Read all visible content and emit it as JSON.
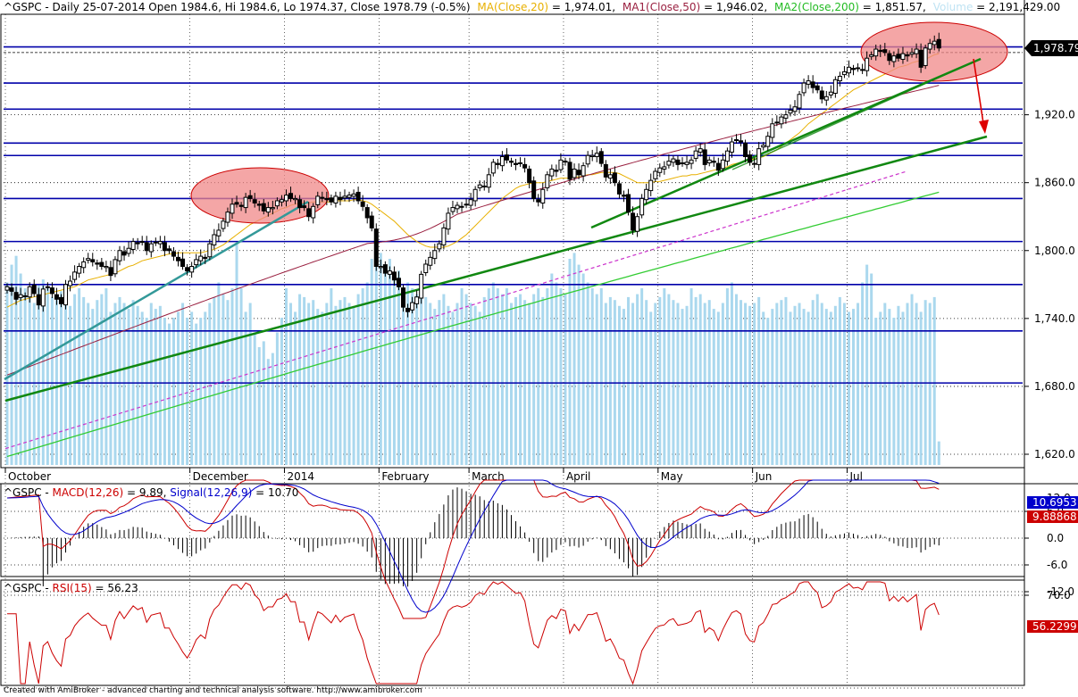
{
  "header": {
    "main_prefix": "^GSPC - Daily 25-07-2014 Open 1984.6, Hi 1984.6, Lo 1974.37, Close 1978.79 (-0.5%)",
    "ma_label": "MA(Close,20)",
    "ma_value": " = 1,974.01,",
    "ma1_label": "MA1(Close,50)",
    "ma1_value": " = 1,946.02,",
    "ma2_label": "MA2(Close,200)",
    "ma2_value": " = 1,851.57,",
    "vol_label": "Volume",
    "vol_value": " = 2,191,429.00",
    "macd_prefix": "^GSPC - ",
    "macd_label": "MACD(12,26)",
    "macd_value": " = 9.89, ",
    "signal_label": "Signal(12,26,9)",
    "signal_value": " = 10.70",
    "rsi_prefix": "^GSPC - ",
    "rsi_label": "RSI(15)",
    "rsi_value": " = 56.23"
  },
  "colors": {
    "candle": "#000000",
    "ma20": "#e8b000",
    "ma50": "#9a2040",
    "ma200": "#33cc33",
    "volume": "#aad8ee",
    "hline": "#0000aa",
    "trend": "#118811",
    "trend_teal": "#339999",
    "dash": "#cc33cc",
    "ellipse_fill": "#f08888",
    "ellipse_stroke": "#cc0000",
    "arrow": "#dd0000",
    "macd": "#cc0000",
    "signal": "#0000cc",
    "rsi": "#cc0000",
    "price_tag": "#000000",
    "macd_tag": "#0000cc",
    "macd_tag2": "#cc0000",
    "rsi_tag": "#cc0000"
  },
  "price_tag": "1,978.79",
  "macd_tags": [
    "10.6953",
    "9.88868"
  ],
  "rsi_tag": "56.2299",
  "footer": "Created with AmiBroker - advanced charting and technical analysis software. http://www.amibroker.com",
  "chart_data": [
    {
      "type": "candlestick",
      "series_name": "^GSPC",
      "ylim": [
        1600,
        2000
      ],
      "y_ticks": [
        1620,
        1680,
        1740,
        1800,
        1860,
        1920,
        1978.79
      ],
      "y_tick_labels": [
        "1,620.0",
        "1,680.0",
        "1,740.0",
        "1,800.0",
        "1,860.0",
        "1,920.0",
        "1,978.79"
      ],
      "x_labels": [
        {
          "label": "October",
          "index": 0
        },
        {
          "label": "December",
          "index": 41
        },
        {
          "label": "2014",
          "index": 62
        },
        {
          "label": "February",
          "index": 83
        },
        {
          "label": "March",
          "index": 103
        },
        {
          "label": "April",
          "index": 124
        },
        {
          "label": "May",
          "index": 145
        },
        {
          "label": "Jun",
          "index": 166
        },
        {
          "label": "Jul",
          "index": 187
        }
      ],
      "horizontal_lines": [
        1980,
        1948,
        1925,
        1895,
        1884,
        1846,
        1808,
        1770,
        1729,
        1683
      ],
      "close": [
        1768,
        1764,
        1757,
        1761,
        1760,
        1768,
        1762,
        1752,
        1766,
        1768,
        1762,
        1757,
        1753,
        1770,
        1773,
        1781,
        1786,
        1790,
        1793,
        1790,
        1788,
        1786,
        1786,
        1778,
        1792,
        1800,
        1796,
        1802,
        1808,
        1806,
        1808,
        1800,
        1806,
        1807,
        1808,
        1800,
        1800,
        1795,
        1791,
        1786,
        1782,
        1786,
        1792,
        1795,
        1793,
        1806,
        1814,
        1818,
        1826,
        1834,
        1841,
        1841,
        1839,
        1847,
        1846,
        1842,
        1840,
        1835,
        1838,
        1838,
        1844,
        1845,
        1849,
        1846,
        1846,
        1838,
        1838,
        1830,
        1839,
        1848,
        1847,
        1845,
        1843,
        1848,
        1845,
        1848,
        1849,
        1850,
        1844,
        1839,
        1829,
        1820,
        1786,
        1786,
        1780,
        1782,
        1774,
        1768,
        1750,
        1746,
        1754,
        1759,
        1779,
        1788,
        1794,
        1800,
        1806,
        1820,
        1833,
        1838,
        1840,
        1839,
        1841,
        1845,
        1854,
        1858,
        1857,
        1867,
        1878,
        1876,
        1883,
        1880,
        1878,
        1876,
        1877,
        1873,
        1860,
        1846,
        1843,
        1854,
        1867,
        1872,
        1870,
        1880,
        1879,
        1863,
        1872,
        1867,
        1875,
        1884,
        1884,
        1886,
        1877,
        1865,
        1867,
        1860,
        1850,
        1848,
        1834,
        1818,
        1830,
        1846,
        1854,
        1862,
        1870,
        1873,
        1874,
        1879,
        1881,
        1876,
        1877,
        1878,
        1880,
        1888,
        1890,
        1876,
        1880,
        1878,
        1871,
        1880,
        1888,
        1896,
        1898,
        1896,
        1883,
        1878,
        1877,
        1890,
        1893,
        1901,
        1912,
        1913,
        1918,
        1920,
        1924,
        1927,
        1938,
        1948,
        1950,
        1944,
        1942,
        1934,
        1936,
        1940,
        1951,
        1954,
        1958,
        1962,
        1960,
        1961,
        1960,
        1970,
        1973,
        1978,
        1976,
        1975,
        1968,
        1972,
        1970,
        1974,
        1972,
        1975,
        1978,
        1962,
        1979,
        1983,
        1985,
        1979
      ],
      "ma20": [
        1750,
        1752,
        1754,
        1756,
        1757,
        1758,
        1759,
        1760,
        1761,
        1762,
        1763,
        1764,
        1765,
        1766,
        1767,
        1768,
        1770,
        1772,
        1774,
        1775,
        1776,
        1777,
        1778,
        1779,
        1780,
        1782,
        1784,
        1786,
        1787,
        1789,
        1791,
        1792,
        1793,
        1794,
        1795,
        1796,
        1797,
        1797,
        1798,
        1798,
        1798,
        1798,
        1798,
        1798,
        1799,
        1800,
        1801,
        1803,
        1805,
        1808,
        1811,
        1814,
        1817,
        1820,
        1823,
        1825,
        1827,
        1829,
        1831,
        1833,
        1835,
        1837,
        1838,
        1840,
        1841,
        1842,
        1842,
        1842,
        1843,
        1843,
        1843,
        1843,
        1843,
        1844,
        1844,
        1844,
        1844,
        1845,
        1845,
        1844,
        1843,
        1841,
        1838,
        1835,
        1832,
        1829,
        1826,
        1822,
        1818,
        1814,
        1811,
        1808,
        1806,
        1804,
        1803,
        1803,
        1803,
        1803,
        1804,
        1806,
        1808,
        1811,
        1814,
        1818,
        1822,
        1826,
        1830,
        1834,
        1838,
        1842,
        1846,
        1849,
        1852,
        1855,
        1857,
        1858,
        1859,
        1860,
        1860,
        1860,
        1861,
        1862,
        1863,
        1864,
        1864,
        1864,
        1865,
        1865,
        1866,
        1867,
        1867,
        1868,
        1869,
        1869,
        1869,
        1869,
        1868,
        1866,
        1864,
        1862,
        1860,
        1860,
        1860,
        1860,
        1861,
        1861,
        1862,
        1863,
        1864,
        1865,
        1866,
        1866,
        1867,
        1867,
        1868,
        1869,
        1870,
        1871,
        1872,
        1873,
        1874,
        1876,
        1877,
        1878,
        1879,
        1880,
        1881,
        1882,
        1883,
        1885,
        1887,
        1889,
        1892,
        1895,
        1898,
        1901,
        1904,
        1908,
        1912,
        1915,
        1918,
        1921,
        1924,
        1927,
        1930,
        1933,
        1936,
        1939,
        1942,
        1944,
        1946,
        1948,
        1950,
        1952,
        1954,
        1956,
        1958,
        1960,
        1962,
        1963,
        1964,
        1966,
        1967,
        1968,
        1969,
        1971,
        1973,
        1974
      ],
      "ma50_start": 1690,
      "ma50_end": 1946,
      "ma200_start": 1618,
      "ma200_end": 1851.57,
      "volume_relative": [
        0.62,
        0.68,
        0.71,
        0.65,
        0.6,
        0.58,
        0.55,
        0.61,
        0.63,
        0.6,
        0.57,
        0.56,
        0.59,
        0.6,
        0.54,
        0.58,
        0.6,
        0.57,
        0.55,
        0.53,
        0.56,
        0.58,
        0.6,
        0.52,
        0.55,
        0.57,
        0.55,
        0.53,
        0.56,
        0.54,
        0.52,
        0.5,
        0.55,
        0.53,
        0.54,
        0.5,
        0.48,
        0.5,
        0.52,
        0.55,
        0.5,
        0.52,
        0.48,
        0.5,
        0.52,
        0.55,
        0.57,
        0.62,
        0.58,
        0.56,
        0.6,
        0.75,
        0.6,
        0.52,
        0.55,
        0.45,
        0.4,
        0.42,
        0.36,
        0.38,
        0.45,
        0.5,
        0.6,
        0.55,
        0.52,
        0.58,
        0.57,
        0.55,
        0.56,
        0.53,
        0.52,
        0.55,
        0.6,
        0.54,
        0.56,
        0.57,
        0.55,
        0.54,
        0.58,
        0.6,
        0.62,
        0.7,
        0.75,
        0.72,
        0.68,
        0.7,
        0.65,
        0.66,
        0.6,
        0.62,
        0.6,
        0.58,
        0.6,
        0.57,
        0.55,
        0.53,
        0.56,
        0.58,
        0.54,
        0.52,
        0.55,
        0.6,
        0.58,
        0.55,
        0.54,
        0.52,
        0.57,
        0.6,
        0.62,
        0.6,
        0.58,
        0.6,
        0.55,
        0.57,
        0.58,
        0.56,
        0.55,
        0.58,
        0.6,
        0.57,
        0.6,
        0.65,
        0.62,
        0.6,
        0.58,
        0.7,
        0.72,
        0.68,
        0.65,
        0.62,
        0.6,
        0.58,
        0.6,
        0.55,
        0.57,
        0.56,
        0.54,
        0.53,
        0.57,
        0.55,
        0.58,
        0.6,
        0.56,
        0.52,
        0.55,
        0.57,
        0.6,
        0.58,
        0.56,
        0.55,
        0.53,
        0.54,
        0.6,
        0.57,
        0.58,
        0.55,
        0.56,
        0.53,
        0.52,
        0.55,
        0.6,
        0.62,
        0.58,
        0.56,
        0.55,
        0.54,
        0.55,
        0.57,
        0.52,
        0.5,
        0.53,
        0.55,
        0.56,
        0.57,
        0.52,
        0.54,
        0.55,
        0.53,
        0.52,
        0.56,
        0.58,
        0.55,
        0.53,
        0.52,
        0.54,
        0.57,
        0.55,
        0.52,
        0.53,
        0.55,
        0.62,
        0.68,
        0.65,
        0.5,
        0.52,
        0.55,
        0.53,
        0.5,
        0.54,
        0.52,
        0.55,
        0.58,
        0.55,
        0.52,
        0.56,
        0.55,
        0.57,
        0.08
      ]
    },
    {
      "type": "line",
      "series_names": [
        "MACD(12,26)",
        "Signal(12,26,9)"
      ],
      "ylim": [
        -20,
        14
      ],
      "y_ticks": [
        12,
        6,
        0,
        -6,
        -12
      ],
      "y_tick_labels": [
        "12.0",
        "6.0",
        "0.0",
        "-6.0",
        "-12.0"
      ],
      "macd_value": 9.89,
      "signal_value": 10.7
    },
    {
      "type": "line",
      "series_names": [
        "RSI(15)"
      ],
      "ylim": [
        20,
        80
      ],
      "y_ticks": [
        70
      ],
      "y_tick_labels": [
        "70.0"
      ],
      "last_value": 56.23
    }
  ]
}
